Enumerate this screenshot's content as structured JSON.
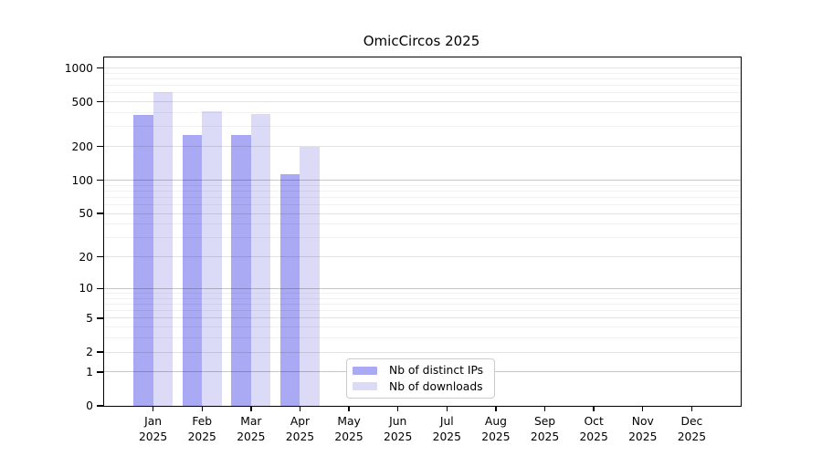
{
  "chart_data": {
    "type": "bar",
    "title": "OmicCircos 2025",
    "year_label": "2025",
    "categories": [
      "Jan",
      "Feb",
      "Mar",
      "Apr",
      "May",
      "Jun",
      "Jul",
      "Aug",
      "Sep",
      "Oct",
      "Nov",
      "Dec"
    ],
    "series": [
      {
        "name": "Nb of distinct IPs",
        "color": "#a9a9f4",
        "values": [
          385,
          254,
          254,
          113,
          0,
          0,
          0,
          0,
          0,
          0,
          0,
          0
        ]
      },
      {
        "name": "Nb of downloads",
        "color": "#dbdbf7",
        "values": [
          605,
          415,
          390,
          200,
          0,
          0,
          0,
          0,
          0,
          0,
          0,
          0
        ]
      }
    ],
    "y_ticks": [
      0,
      1,
      2,
      5,
      10,
      20,
      50,
      100,
      200,
      500,
      1000
    ],
    "y_major_gridlines": [
      1,
      10,
      100
    ],
    "y_minor_gridlines": [
      3,
      4,
      6,
      7,
      8,
      9,
      30,
      40,
      60,
      70,
      80,
      90,
      300,
      400,
      600,
      700,
      800,
      900
    ],
    "scale": "log1p",
    "ylim": [
      0,
      1240
    ],
    "xlabel": "",
    "ylabel": "",
    "grid": "horizontal",
    "legend_position": "lower-center"
  }
}
